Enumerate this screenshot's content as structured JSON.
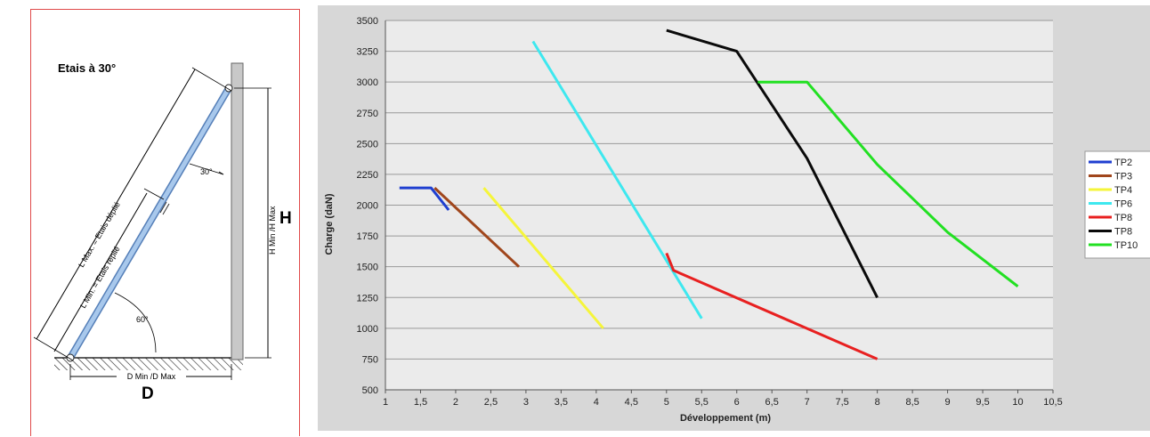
{
  "diagram": {
    "title": "Etais à 30°",
    "label_h": "H",
    "label_d": "D",
    "label_l_max": "L Max. = Etais déplié",
    "label_l_min": "L Min. = Etais replié",
    "label_h_range": "H Min /H Max",
    "label_d_range": "D Min /D Max",
    "angle_top": "30°",
    "angle_bottom": "60°"
  },
  "chart_data": {
    "type": "line",
    "xlabel": "Développement (m)",
    "ylabel": "Charge (daN)",
    "xlim": [
      1,
      10.5
    ],
    "ylim": [
      500,
      3500
    ],
    "xticks": [
      "1",
      "1,5",
      "2",
      "2,5",
      "3",
      "3,5",
      "4",
      "4,5",
      "5",
      "5,5",
      "6",
      "6,5",
      "7",
      "7,5",
      "8",
      "8,5",
      "9",
      "9,5",
      "10",
      "10,5"
    ],
    "yticks": [
      "500",
      "750",
      "1000",
      "1250",
      "1500",
      "1750",
      "2000",
      "2250",
      "2500",
      "2750",
      "3000",
      "3250",
      "3500"
    ],
    "grid": "horizontal",
    "legend_position": "right",
    "series": [
      {
        "name": "TP2",
        "color": "#1f3fd0",
        "points": [
          [
            1.2,
            2140
          ],
          [
            1.65,
            2140
          ],
          [
            1.9,
            1960
          ]
        ]
      },
      {
        "name": "TP3",
        "color": "#a0461c",
        "points": [
          [
            1.7,
            2140
          ],
          [
            2.9,
            1500
          ]
        ]
      },
      {
        "name": "TP4",
        "color": "#f5f53a",
        "points": [
          [
            2.4,
            2140
          ],
          [
            4.1,
            1000
          ]
        ]
      },
      {
        "name": "TP6",
        "color": "#3ee8ef",
        "points": [
          [
            3.1,
            3330
          ],
          [
            5.5,
            1080
          ]
        ]
      },
      {
        "name": "TP8",
        "color": "#e82020",
        "points": [
          [
            5.0,
            1610
          ],
          [
            5.1,
            1470
          ],
          [
            8.0,
            750
          ]
        ]
      },
      {
        "name": "TP8",
        "color": "#0a0a0a",
        "points": [
          [
            5.0,
            3420
          ],
          [
            6.0,
            3250
          ],
          [
            7.0,
            2380
          ],
          [
            8.0,
            1250
          ]
        ]
      },
      {
        "name": "TP10",
        "color": "#22e022",
        "points": [
          [
            6.3,
            3000
          ],
          [
            7.0,
            3000
          ],
          [
            8.0,
            2330
          ],
          [
            9.0,
            1780
          ],
          [
            10.0,
            1340
          ]
        ]
      }
    ]
  }
}
